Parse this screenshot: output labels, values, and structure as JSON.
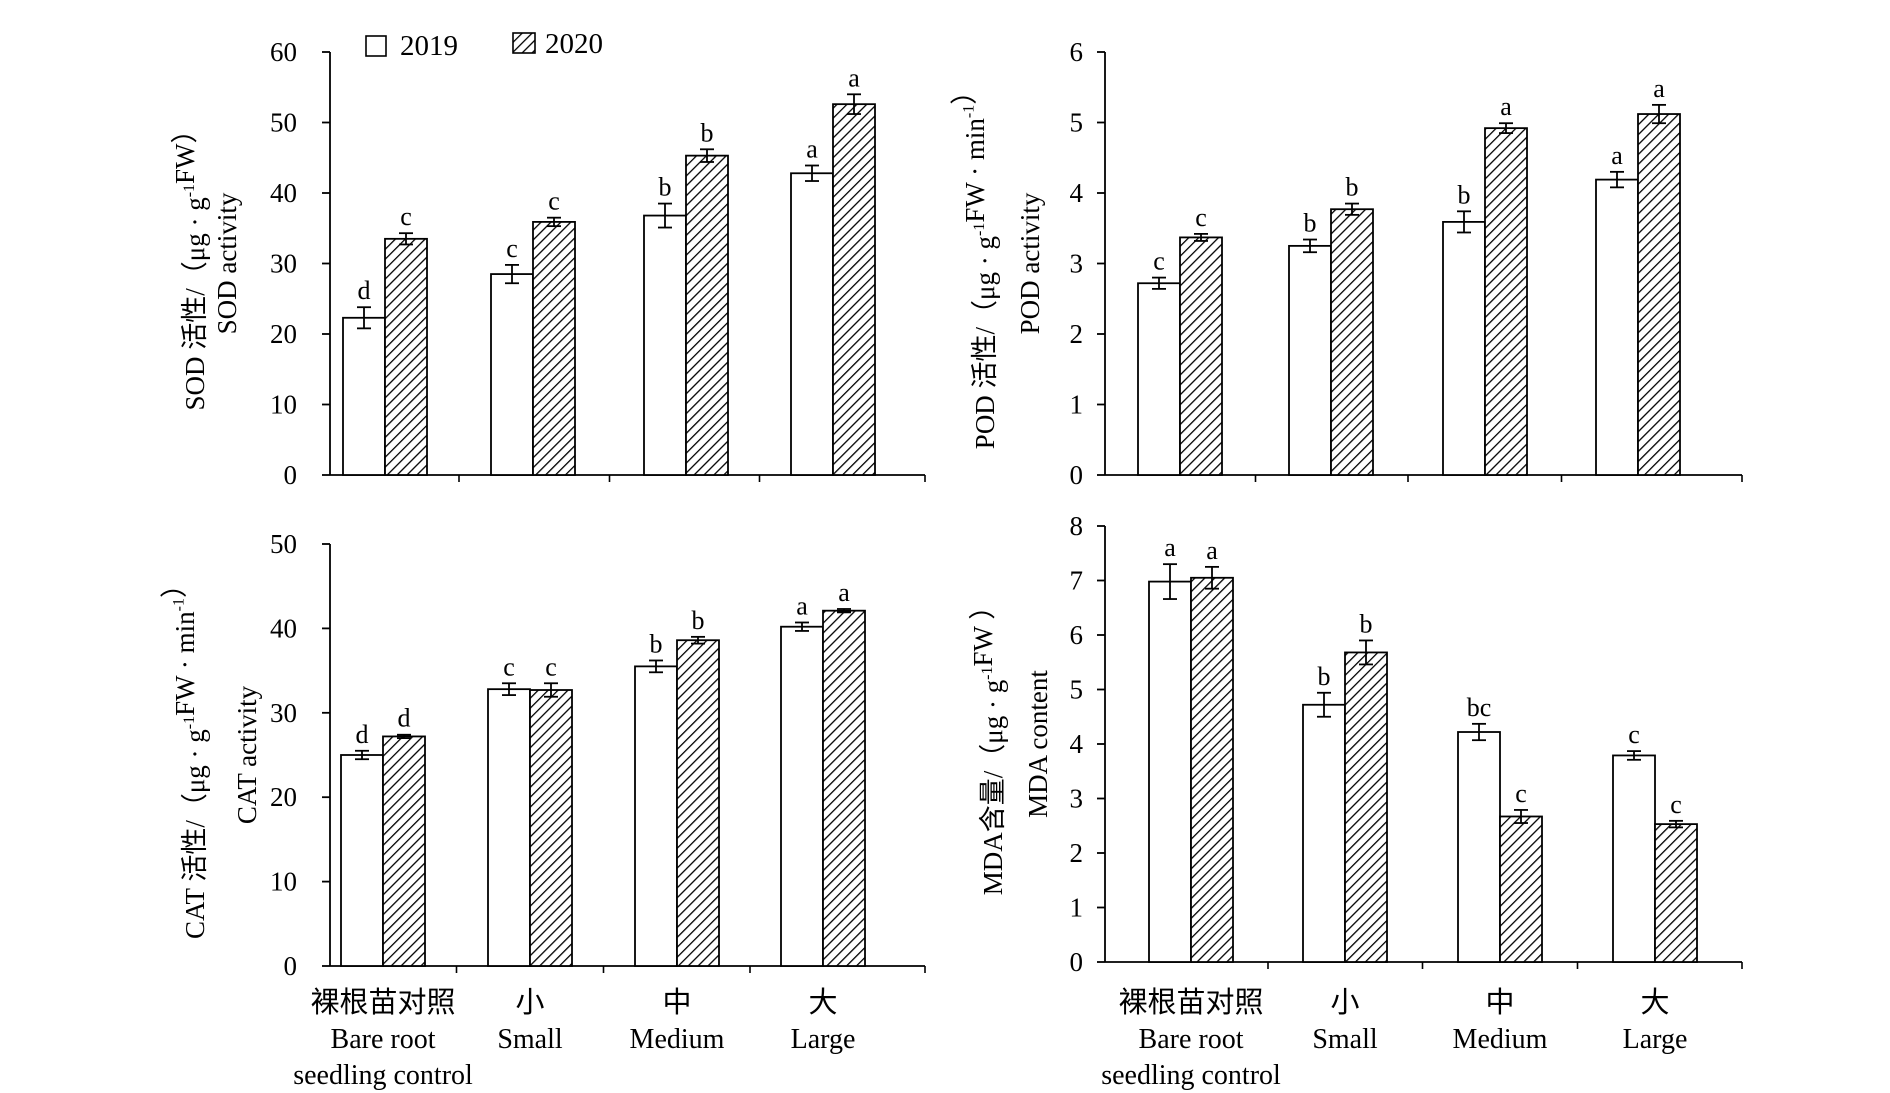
{
  "legend": {
    "series_2019": "2019",
    "series_2020": "2020"
  },
  "categories_cn": [
    "裸根苗对照",
    "小",
    "中",
    "大"
  ],
  "categories_en": [
    [
      "Bare root",
      "seedling control"
    ],
    [
      "Small"
    ],
    [
      "Medium"
    ],
    [
      "Large"
    ]
  ],
  "chart_data": [
    {
      "id": "sod",
      "type": "bar",
      "ylabel_cn": "SOD 活性/（μg · g-1FW）",
      "ylabel_en": "SOD activity",
      "ylim": [
        0,
        60
      ],
      "yticks": [
        0,
        10,
        20,
        30,
        40,
        50,
        60
      ],
      "categories": [
        "裸根苗对照 Bare root seedling control",
        "小 Small",
        "中 Medium",
        "大 Large"
      ],
      "series": [
        {
          "name": "2019",
          "values": [
            22.3,
            28.5,
            36.8,
            42.8
          ],
          "errors": [
            1.5,
            1.3,
            1.7,
            1.1
          ],
          "letters": [
            "d",
            "c",
            "b",
            "a"
          ]
        },
        {
          "name": "2020",
          "values": [
            33.5,
            35.9,
            45.3,
            52.6
          ],
          "errors": [
            0.8,
            0.6,
            0.9,
            1.4
          ],
          "letters": [
            "c",
            "c",
            "b",
            "a"
          ]
        }
      ]
    },
    {
      "id": "pod",
      "type": "bar",
      "ylabel_cn": "POD 活性/（μg · g-1FW · min-1）",
      "ylabel_en": "POD activity",
      "ylim": [
        0,
        6
      ],
      "yticks": [
        0,
        1,
        2,
        3,
        4,
        5,
        6
      ],
      "categories": [
        "裸根苗对照 Bare root seedling control",
        "小 Small",
        "中 Medium",
        "大 Large"
      ],
      "series": [
        {
          "name": "2019",
          "values": [
            2.72,
            3.25,
            3.59,
            4.19
          ],
          "errors": [
            0.08,
            0.09,
            0.15,
            0.11
          ],
          "letters": [
            "c",
            "b",
            "b",
            "a"
          ]
        },
        {
          "name": "2020",
          "values": [
            3.37,
            3.77,
            4.92,
            5.12
          ],
          "errors": [
            0.05,
            0.08,
            0.07,
            0.13
          ],
          "letters": [
            "c",
            "b",
            "a",
            "a"
          ]
        }
      ]
    },
    {
      "id": "cat",
      "type": "bar",
      "ylabel_cn": "CAT 活性/（μg · g-1FW · min-1）",
      "ylabel_en": "CAT activity",
      "ylim": [
        0,
        50
      ],
      "yticks": [
        0,
        10,
        20,
        30,
        40,
        50
      ],
      "categories": [
        "裸根苗对照 Bare root seedling control",
        "小 Small",
        "中 Medium",
        "大 Large"
      ],
      "series": [
        {
          "name": "2019",
          "values": [
            25.0,
            32.8,
            35.5,
            40.2
          ],
          "errors": [
            0.5,
            0.7,
            0.7,
            0.5
          ],
          "letters": [
            "d",
            "c",
            "b",
            "a"
          ]
        },
        {
          "name": "2020",
          "values": [
            27.2,
            32.7,
            38.6,
            42.1
          ],
          "errors": [
            0.2,
            0.8,
            0.4,
            0.2
          ],
          "letters": [
            "d",
            "c",
            "b",
            "a"
          ]
        }
      ]
    },
    {
      "id": "mda",
      "type": "bar",
      "ylabel_cn": "MDA含量/（μg · g-1FW ）",
      "ylabel_en": "MDA content",
      "ylim": [
        0,
        8
      ],
      "yticks": [
        0,
        1,
        2,
        3,
        4,
        5,
        6,
        7,
        8
      ],
      "categories": [
        "裸根苗对照 Bare root seedling control",
        "小 Small",
        "中 Medium",
        "大 Large"
      ],
      "series": [
        {
          "name": "2019",
          "values": [
            6.98,
            4.72,
            4.22,
            3.79
          ],
          "errors": [
            0.32,
            0.22,
            0.15,
            0.08
          ],
          "letters": [
            "a",
            "b",
            "bc",
            "c"
          ]
        },
        {
          "name": "2020",
          "values": [
            7.05,
            5.68,
            2.67,
            2.53
          ],
          "errors": [
            0.2,
            0.22,
            0.12,
            0.06
          ],
          "letters": [
            "a",
            "b",
            "c",
            "c"
          ]
        }
      ]
    }
  ]
}
